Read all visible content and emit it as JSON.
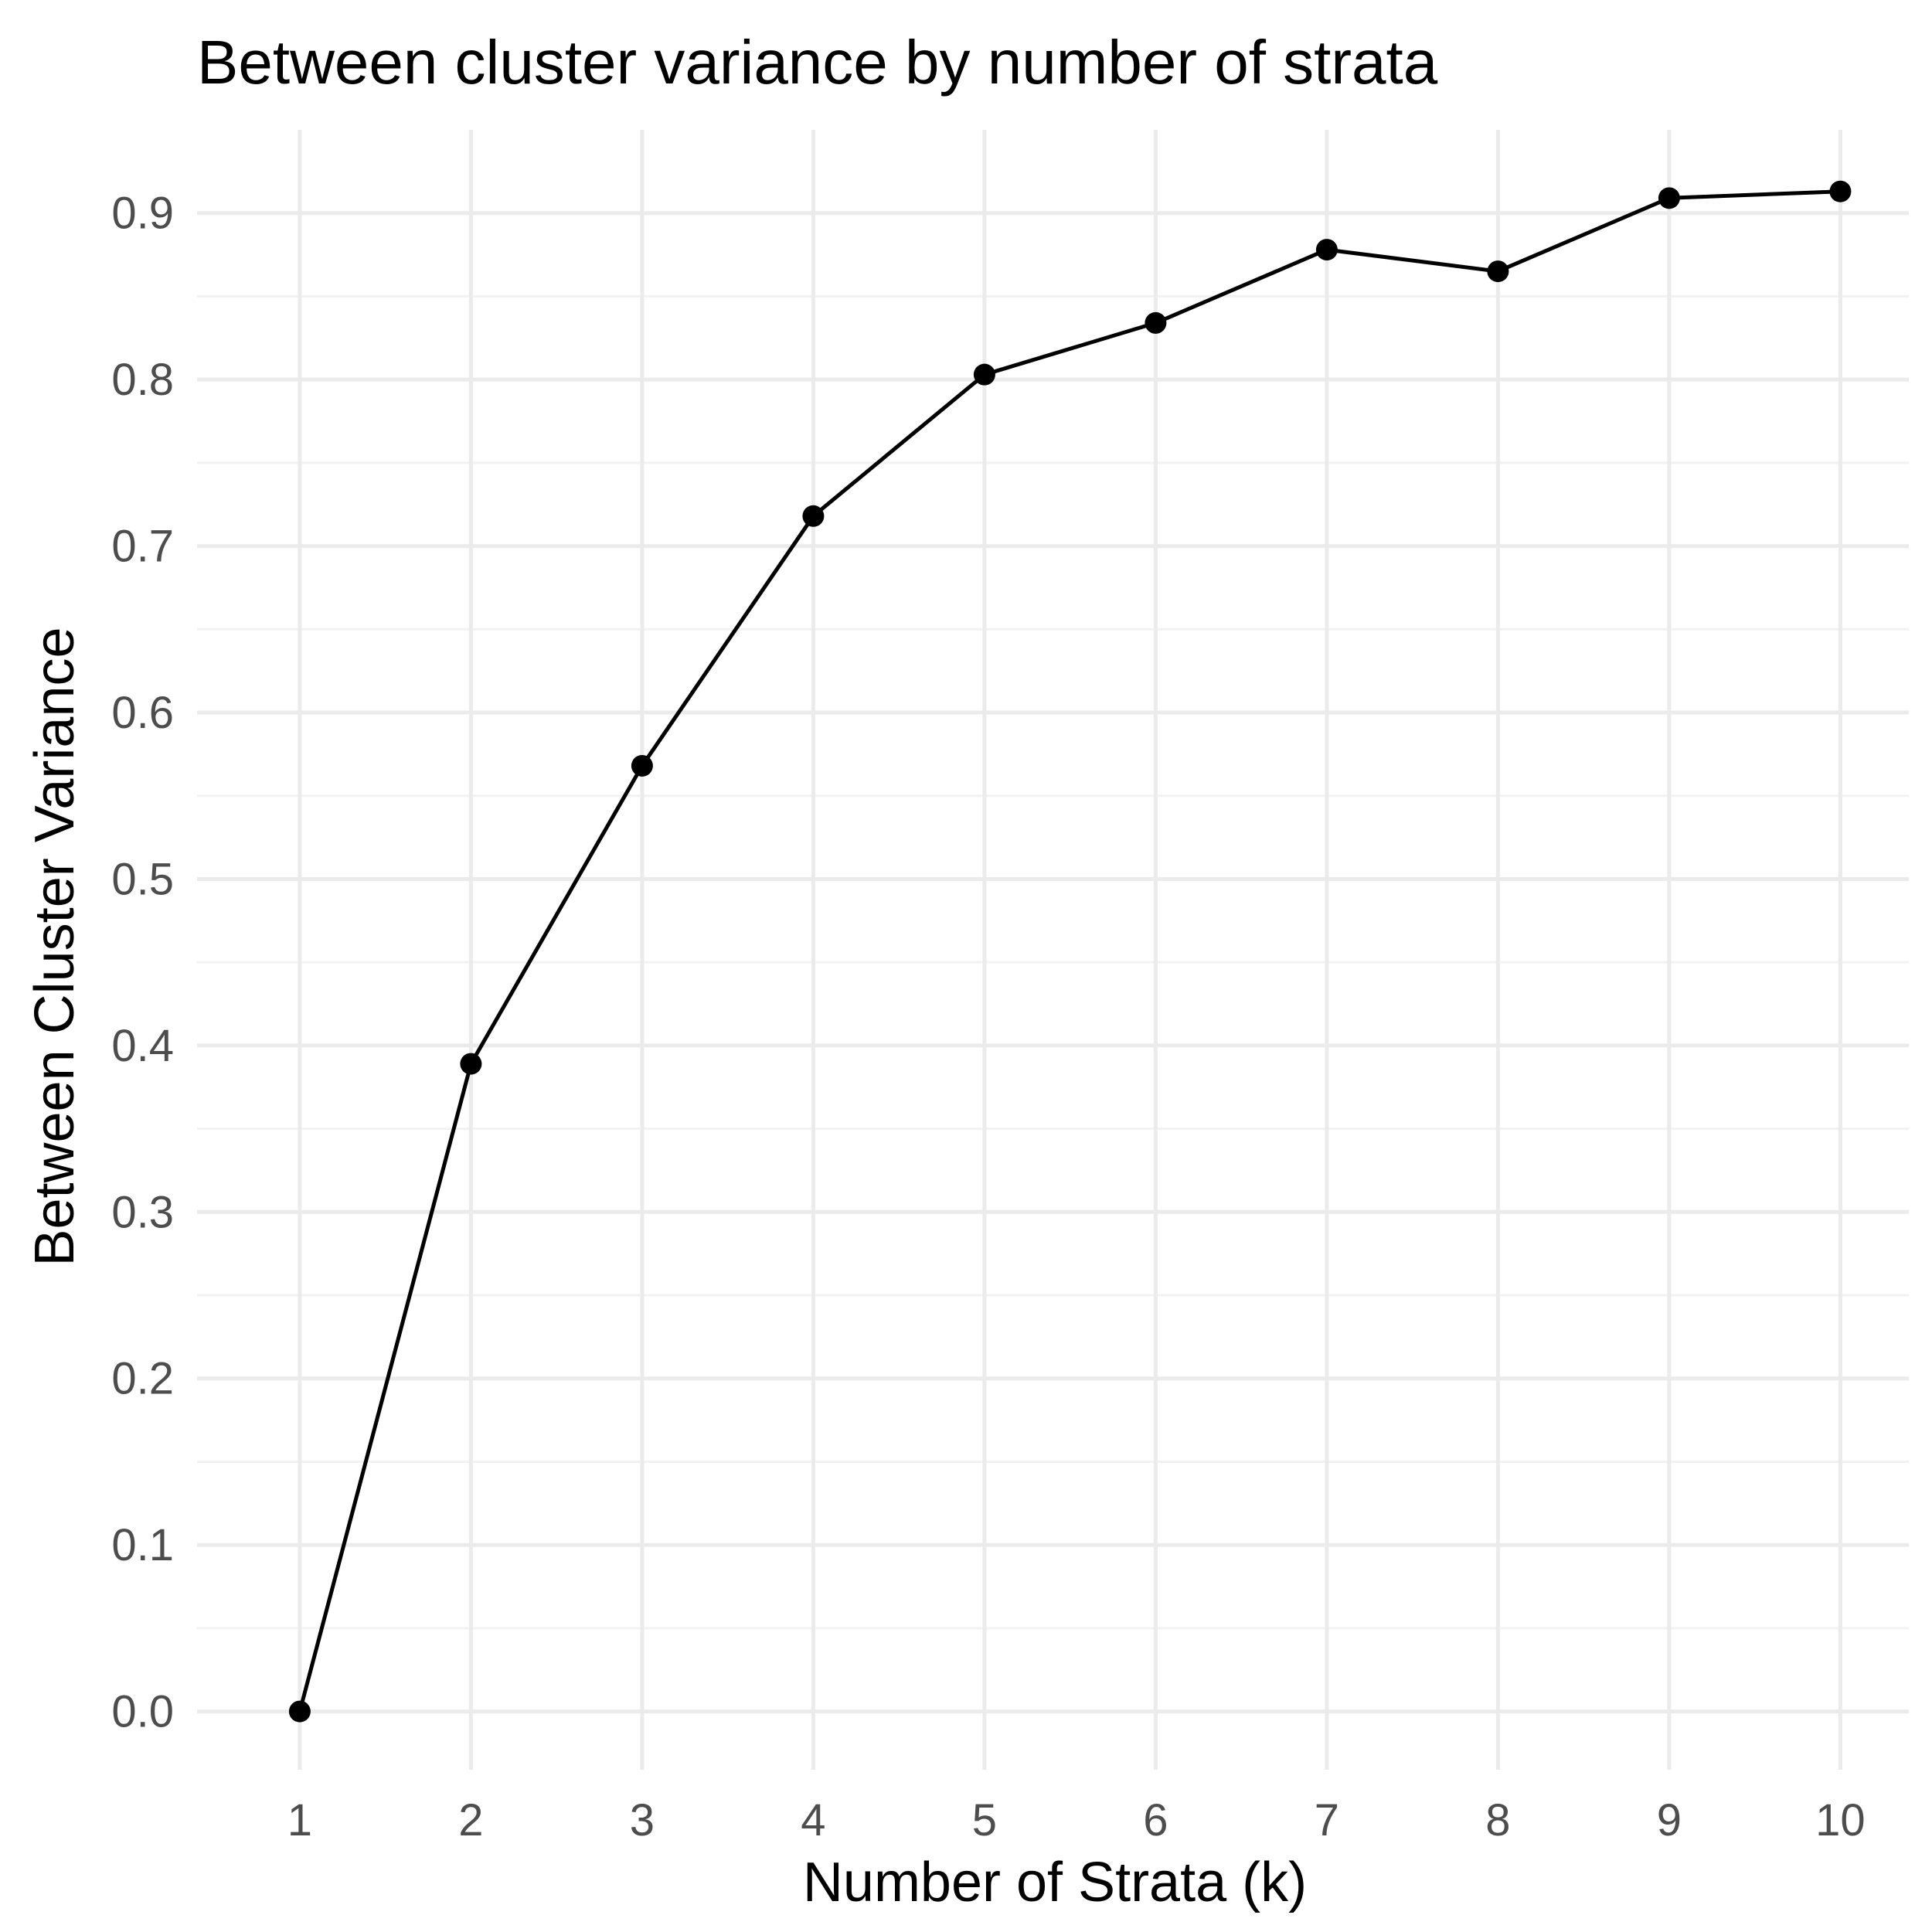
{
  "chart_data": {
    "type": "line",
    "title": "Between cluster variance by number of strata",
    "xlabel": "Number of Strata (k)",
    "ylabel": "Between Cluster Variance",
    "x": [
      1,
      2,
      3,
      4,
      5,
      6,
      7,
      8,
      9,
      10
    ],
    "series": [
      {
        "values": [
          0.0,
          0.389,
          0.568,
          0.718,
          0.803,
          0.834,
          0.878,
          0.865,
          0.909,
          0.913
        ],
        "color": "#000000"
      }
    ],
    "x_ticks": [
      "1",
      "2",
      "3",
      "4",
      "5",
      "6",
      "7",
      "8",
      "9",
      "10"
    ],
    "y_ticks": [
      "0.0",
      "0.1",
      "0.2",
      "0.3",
      "0.4",
      "0.5",
      "0.6",
      "0.7",
      "0.8",
      "0.9"
    ],
    "xlim": [
      0.4,
      10.4
    ],
    "ylim": [
      -0.035,
      0.95
    ],
    "grid": true,
    "legend": "none"
  }
}
